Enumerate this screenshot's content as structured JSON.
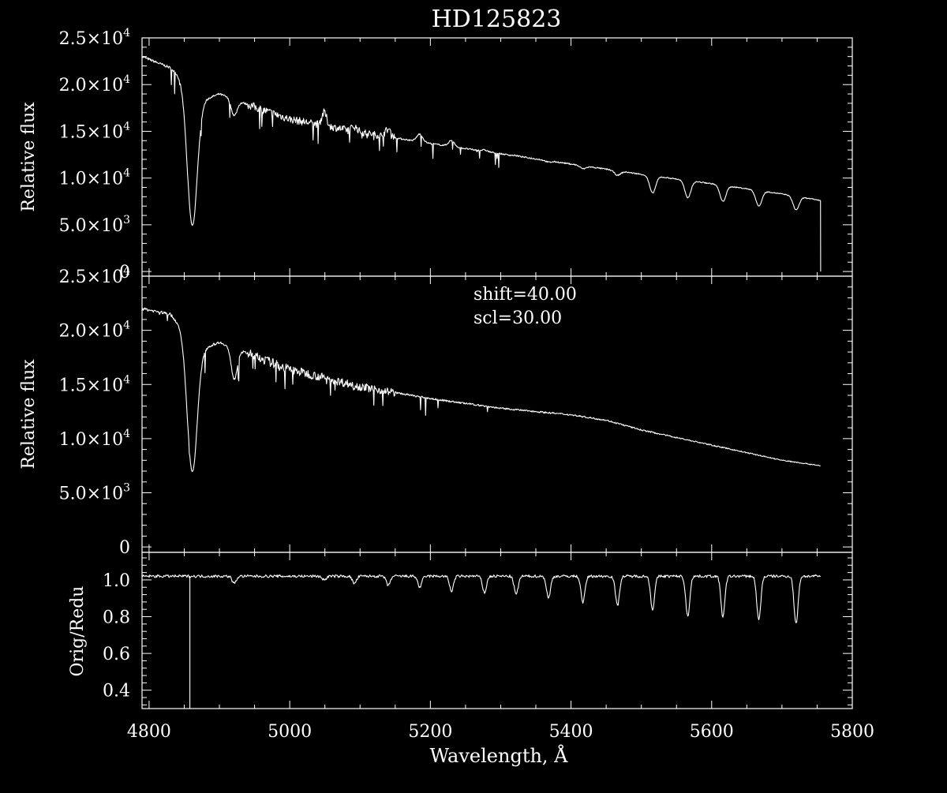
{
  "title": "HD125823",
  "chart_data": [
    {
      "type": "line",
      "panel": "top",
      "ylabel": "Relative flux",
      "xlim": [
        4790,
        5800
      ],
      "ylim": [
        -500,
        25000
      ],
      "yticks": [
        {
          "v": 25000,
          "m": "2.5",
          "e": "4"
        },
        {
          "v": 20000,
          "m": "2.0",
          "e": "4"
        },
        {
          "v": 15000,
          "m": "1.5",
          "e": "4"
        },
        {
          "v": 10000,
          "m": "1.0",
          "e": "4"
        },
        {
          "v": 5000,
          "m": "5.0",
          "e": "3"
        },
        {
          "v": 0,
          "m": "0",
          "e": ""
        }
      ],
      "continuum": [
        [
          4790,
          23000
        ],
        [
          4830,
          21800
        ],
        [
          4850,
          20500
        ],
        [
          4865,
          18000
        ],
        [
          4900,
          19000
        ],
        [
          4950,
          17600
        ],
        [
          5000,
          16300
        ],
        [
          5100,
          14900
        ],
        [
          5200,
          13700
        ],
        [
          5300,
          12600
        ],
        [
          5400,
          11500
        ],
        [
          5500,
          10400
        ],
        [
          5600,
          9400
        ],
        [
          5700,
          8300
        ],
        [
          5755,
          7600
        ]
      ],
      "absorption_lines": [
        [
          4861,
          5000,
          10
        ],
        [
          4921,
          16700,
          6
        ],
        [
          5049,
          17000,
          5
        ],
        [
          5092,
          15500,
          6
        ],
        [
          5140,
          15200,
          6
        ],
        [
          5185,
          14700,
          6
        ],
        [
          5230,
          14000,
          6
        ],
        [
          5277,
          13000,
          6
        ],
        [
          5322,
          12400,
          6
        ],
        [
          5368,
          11700,
          6
        ],
        [
          5417,
          11000,
          6
        ],
        [
          5466,
          10300,
          6
        ],
        [
          5516,
          8400,
          6
        ],
        [
          5566,
          7900,
          6
        ],
        [
          5616,
          7500,
          6
        ],
        [
          5667,
          7000,
          6
        ],
        [
          5720,
          6600,
          6
        ]
      ],
      "end_drop": [
        5755,
        0
      ]
    },
    {
      "type": "line",
      "panel": "middle",
      "ylabel": "Relative flux",
      "annotations": [
        "shift=40.00",
        "scl=30.00"
      ],
      "xlim": [
        4790,
        5800
      ],
      "ylim": [
        -500,
        25000
      ],
      "yticks": [
        {
          "v": 25000,
          "m": "2.5",
          "e": "4"
        },
        {
          "v": 20000,
          "m": "2.0",
          "e": "4"
        },
        {
          "v": 15000,
          "m": "1.5",
          "e": "4"
        },
        {
          "v": 10000,
          "m": "1.0",
          "e": "4"
        },
        {
          "v": 5000,
          "m": "5.0",
          "e": "3"
        },
        {
          "v": 0,
          "m": "0",
          "e": ""
        }
      ],
      "continuum": [
        [
          4790,
          22000
        ],
        [
          4830,
          21500
        ],
        [
          4850,
          20000
        ],
        [
          4865,
          18000
        ],
        [
          4900,
          18900
        ],
        [
          4950,
          17600
        ],
        [
          5000,
          16400
        ],
        [
          5100,
          14800
        ],
        [
          5200,
          13700
        ],
        [
          5300,
          12800
        ],
        [
          5400,
          12200
        ],
        [
          5450,
          11700
        ],
        [
          5500,
          10800
        ],
        [
          5600,
          9400
        ],
        [
          5700,
          8000
        ],
        [
          5755,
          7500
        ]
      ],
      "absorption_lines": [
        [
          4861,
          7000,
          10
        ],
        [
          4921,
          15500,
          6
        ]
      ]
    },
    {
      "type": "line",
      "panel": "bottom",
      "ylabel": "Orig/Redu",
      "xlabel": "Wavelength, Å",
      "xlim": [
        4790,
        5800
      ],
      "ylim": [
        0.3,
        1.15
      ],
      "yticks": [
        {
          "v": 1.0,
          "m": "1.0",
          "e": ""
        },
        {
          "v": 0.8,
          "m": "0.8",
          "e": ""
        },
        {
          "v": 0.6,
          "m": "0.6",
          "e": ""
        },
        {
          "v": 0.4,
          "m": "0.4",
          "e": ""
        }
      ],
      "xticks": [
        4800,
        5000,
        5200,
        5400,
        5600,
        5800
      ],
      "ratio_level": 1.02,
      "ratio_dips": [
        [
          4921,
          0.98
        ],
        [
          5049,
          1.0
        ],
        [
          5092,
          0.98
        ],
        [
          5140,
          0.97
        ],
        [
          5185,
          0.96
        ],
        [
          5230,
          0.94
        ],
        [
          5277,
          0.93
        ],
        [
          5322,
          0.92
        ],
        [
          5368,
          0.9
        ],
        [
          5417,
          0.88
        ],
        [
          5466,
          0.86
        ],
        [
          5516,
          0.84
        ],
        [
          5566,
          0.8
        ],
        [
          5616,
          0.8
        ],
        [
          5667,
          0.78
        ],
        [
          5720,
          0.76
        ]
      ],
      "spike": [
        4858,
        0.3
      ]
    }
  ]
}
